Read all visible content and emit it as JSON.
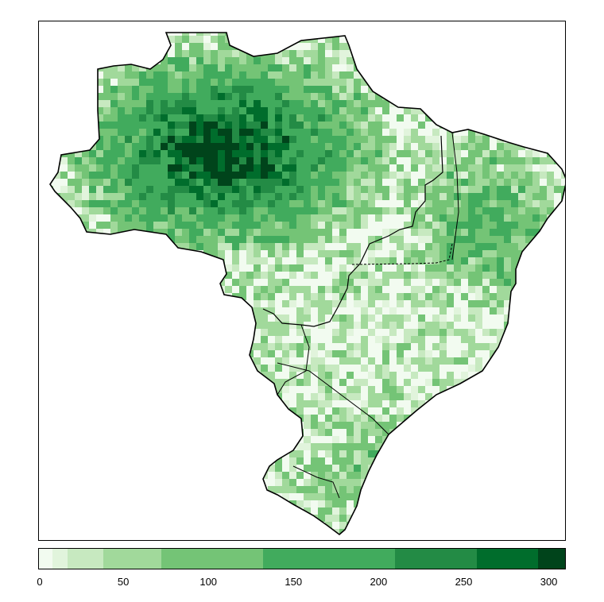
{
  "colorbar": {
    "ticks": [
      "0",
      "50",
      "100",
      "150",
      "200",
      "250",
      "300"
    ],
    "tick_values": [
      0,
      50,
      100,
      150,
      200,
      250,
      300
    ],
    "range": [
      0,
      310
    ],
    "bins": [
      {
        "from": 0,
        "to": 8,
        "color": "#f2fbf0"
      },
      {
        "from": 8,
        "to": 17,
        "color": "#e1f4dc"
      },
      {
        "from": 17,
        "to": 38,
        "color": "#c7e9c0"
      },
      {
        "from": 38,
        "to": 72,
        "color": "#a1d99b"
      },
      {
        "from": 72,
        "to": 132,
        "color": "#74c476"
      },
      {
        "from": 132,
        "to": 210,
        "color": "#41ab5d"
      },
      {
        "from": 210,
        "to": 258,
        "color": "#238b45"
      },
      {
        "from": 258,
        "to": 294,
        "color": "#006d2c"
      },
      {
        "from": 294,
        "to": 310,
        "color": "#00441b"
      }
    ]
  }
}
